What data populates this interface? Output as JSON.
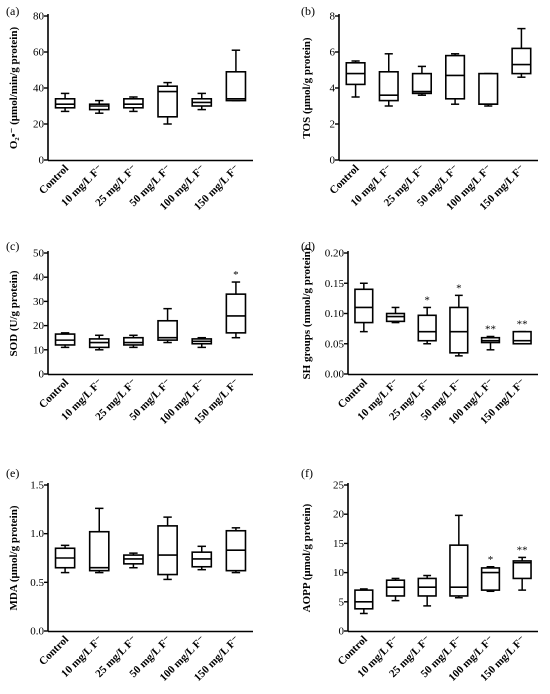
{
  "chart_data": [
    {
      "type": "box",
      "panel_label": "(a)",
      "ylabel": "O₂•⁻ (μmol/min/g protein)",
      "ylim": [
        0,
        80
      ],
      "yticks": [
        0,
        20,
        40,
        60,
        80
      ],
      "categories": [
        "Control",
        "10 mg/L F⁻",
        "25 mg/L F⁻",
        "50 mg/L F⁻",
        "100 mg/L F⁻",
        "150 mg/L F⁻"
      ],
      "boxes": [
        {
          "min": 27,
          "q1": 29,
          "median": 31,
          "q3": 34,
          "max": 37,
          "sig": ""
        },
        {
          "min": 26,
          "q1": 28,
          "median": 30,
          "q3": 31,
          "max": 33,
          "sig": ""
        },
        {
          "min": 27,
          "q1": 29,
          "median": 31,
          "q3": 34,
          "max": 35,
          "sig": ""
        },
        {
          "min": 20,
          "q1": 24,
          "median": 38,
          "q3": 41,
          "max": 43,
          "sig": ""
        },
        {
          "min": 28,
          "q1": 30,
          "median": 32,
          "q3": 34,
          "max": 37,
          "sig": ""
        },
        {
          "min": 33,
          "q1": 33,
          "median": 34,
          "q3": 49,
          "max": 61,
          "sig": ""
        }
      ]
    },
    {
      "type": "box",
      "panel_label": "(b)",
      "ylabel": "TOS (μmol/g protein)",
      "ylim": [
        0,
        8
      ],
      "yticks": [
        0,
        2,
        4,
        6,
        8
      ],
      "categories": [
        "Control",
        "10 mg/L F⁻",
        "25 mg/L F⁻",
        "50 mg/L F⁻",
        "100 mg/L F⁻",
        "150 mg/L F⁻"
      ],
      "boxes": [
        {
          "min": 3.5,
          "q1": 4.2,
          "median": 4.8,
          "q3": 5.4,
          "max": 5.5,
          "sig": ""
        },
        {
          "min": 3.0,
          "q1": 3.3,
          "median": 3.6,
          "q3": 4.9,
          "max": 5.9,
          "sig": ""
        },
        {
          "min": 3.6,
          "q1": 3.7,
          "median": 3.8,
          "q3": 4.8,
          "max": 5.2,
          "sig": ""
        },
        {
          "min": 3.1,
          "q1": 3.4,
          "median": 4.7,
          "q3": 5.8,
          "max": 5.9,
          "sig": ""
        },
        {
          "min": 3.0,
          "q1": 3.1,
          "median": 3.1,
          "q3": 4.8,
          "max": 4.8,
          "sig": ""
        },
        {
          "min": 4.6,
          "q1": 4.8,
          "median": 5.3,
          "q3": 6.2,
          "max": 7.3,
          "sig": ""
        }
      ]
    },
    {
      "type": "box",
      "panel_label": "(c)",
      "ylabel": "SOD (U/g protein)",
      "ylim": [
        0,
        50
      ],
      "yticks": [
        0,
        10,
        20,
        30,
        40,
        50
      ],
      "categories": [
        "Control",
        "10 mg/L F⁻",
        "25 mg/L F⁻",
        "50 mg/L F⁻",
        "100 mg/L F⁻",
        "150 mg/L F⁻"
      ],
      "boxes": [
        {
          "min": 11,
          "q1": 12,
          "median": 14,
          "q3": 16.5,
          "max": 17,
          "sig": ""
        },
        {
          "min": 10,
          "q1": 11,
          "median": 13,
          "q3": 14.5,
          "max": 16,
          "sig": ""
        },
        {
          "min": 11,
          "q1": 12,
          "median": 13,
          "q3": 15,
          "max": 16,
          "sig": ""
        },
        {
          "min": 13,
          "q1": 14,
          "median": 15,
          "q3": 22,
          "max": 27,
          "sig": ""
        },
        {
          "min": 11,
          "q1": 12.5,
          "median": 13.5,
          "q3": 14.5,
          "max": 15,
          "sig": ""
        },
        {
          "min": 15,
          "q1": 17,
          "median": 24,
          "q3": 33,
          "max": 38,
          "sig": "*"
        }
      ]
    },
    {
      "type": "box",
      "panel_label": "(d)",
      "ylabel": "SH groups (mmol/g protein)",
      "ylim": [
        0,
        0.2
      ],
      "yticks": [
        0.0,
        0.05,
        0.1,
        0.15,
        0.2
      ],
      "ytick_labels": [
        "0.00",
        "0.05",
        "0.10",
        "0.15",
        "0.20"
      ],
      "categories": [
        "Control",
        "10 mg/L F⁻",
        "25 mg/L F⁻",
        "50 mg/L F⁻",
        "100 mg/L F⁻",
        "150 mg/L F⁻"
      ],
      "boxes": [
        {
          "min": 0.07,
          "q1": 0.085,
          "median": 0.11,
          "q3": 0.14,
          "max": 0.15,
          "sig": ""
        },
        {
          "min": 0.085,
          "q1": 0.087,
          "median": 0.095,
          "q3": 0.1,
          "max": 0.11,
          "sig": ""
        },
        {
          "min": 0.05,
          "q1": 0.055,
          "median": 0.07,
          "q3": 0.097,
          "max": 0.11,
          "sig": "*"
        },
        {
          "min": 0.03,
          "q1": 0.035,
          "median": 0.07,
          "q3": 0.11,
          "max": 0.13,
          "sig": "*"
        },
        {
          "min": 0.04,
          "q1": 0.052,
          "median": 0.055,
          "q3": 0.06,
          "max": 0.062,
          "sig": "**"
        },
        {
          "min": 0.05,
          "q1": 0.05,
          "median": 0.055,
          "q3": 0.07,
          "max": 0.07,
          "sig": "**"
        }
      ]
    },
    {
      "type": "box",
      "panel_label": "(e)",
      "ylabel": "MDA (μmol/g protein)",
      "ylim": [
        0,
        1.5
      ],
      "yticks": [
        0.0,
        0.5,
        1.0,
        1.5
      ],
      "ytick_labels": [
        "0.0",
        "0.5",
        "1.0",
        "1.5"
      ],
      "categories": [
        "Control",
        "10 mg/L F⁻",
        "25 mg/L F⁻",
        "50 mg/L F⁻",
        "100 mg/L F⁻",
        "150 mg/L F⁻"
      ],
      "boxes": [
        {
          "min": 0.6,
          "q1": 0.65,
          "median": 0.75,
          "q3": 0.85,
          "max": 0.88,
          "sig": ""
        },
        {
          "min": 0.6,
          "q1": 0.62,
          "median": 0.65,
          "q3": 1.02,
          "max": 1.26,
          "sig": ""
        },
        {
          "min": 0.65,
          "q1": 0.69,
          "median": 0.74,
          "q3": 0.78,
          "max": 0.8,
          "sig": ""
        },
        {
          "min": 0.53,
          "q1": 0.58,
          "median": 0.78,
          "q3": 1.08,
          "max": 1.17,
          "sig": ""
        },
        {
          "min": 0.63,
          "q1": 0.66,
          "median": 0.74,
          "q3": 0.81,
          "max": 0.87,
          "sig": ""
        },
        {
          "min": 0.6,
          "q1": 0.62,
          "median": 0.83,
          "q3": 1.03,
          "max": 1.06,
          "sig": ""
        }
      ]
    },
    {
      "type": "box",
      "panel_label": "(f)",
      "ylabel": "AOPP (μmol/g protein)",
      "ylim": [
        0,
        25
      ],
      "yticks": [
        0,
        5,
        10,
        15,
        20,
        25
      ],
      "categories": [
        "Control",
        "10 mg/L F⁻",
        "25 mg/L F⁻",
        "50 mg/L F⁻",
        "100 mg/L F⁻",
        "150 mg/L F⁻"
      ],
      "boxes": [
        {
          "min": 3,
          "q1": 3.8,
          "median": 5,
          "q3": 7,
          "max": 7.2,
          "sig": ""
        },
        {
          "min": 5.2,
          "q1": 6,
          "median": 7.5,
          "q3": 8.7,
          "max": 9,
          "sig": ""
        },
        {
          "min": 4.3,
          "q1": 6,
          "median": 7.5,
          "q3": 9,
          "max": 9.5,
          "sig": ""
        },
        {
          "min": 5.7,
          "q1": 6,
          "median": 7.5,
          "q3": 14.7,
          "max": 19.8,
          "sig": ""
        },
        {
          "min": 6.8,
          "q1": 7,
          "median": 10,
          "q3": 10.8,
          "max": 11,
          "sig": "*"
        },
        {
          "min": 7,
          "q1": 9,
          "median": 11.7,
          "q3": 12,
          "max": 12.6,
          "sig": "**"
        }
      ]
    }
  ]
}
